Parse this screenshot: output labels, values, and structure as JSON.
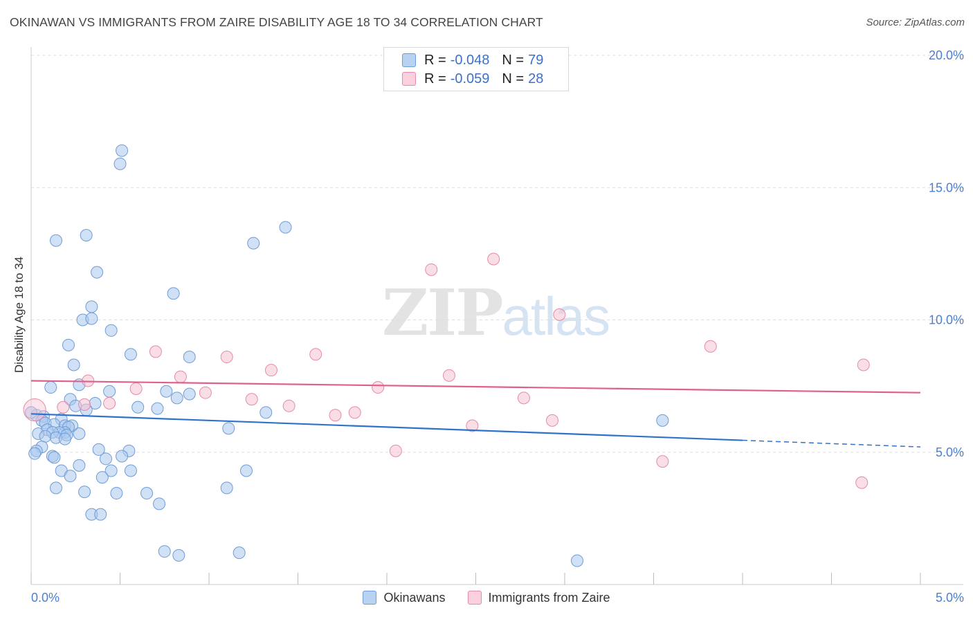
{
  "header": {
    "title": "OKINAWAN VS IMMIGRANTS FROM ZAIRE DISABILITY AGE 18 TO 34 CORRELATION CHART",
    "source": "Source: ZipAtlas.com"
  },
  "watermark": {
    "zip": "ZIP",
    "atlas": "atlas"
  },
  "legend_top": {
    "rows": [
      {
        "r_label": "R =",
        "r_value": "-0.048",
        "n_label": "N =",
        "n_value": "79"
      },
      {
        "r_label": "R =",
        "r_value": "-0.059",
        "n_label": "N =",
        "n_value": "28"
      }
    ]
  },
  "legend_bottom": {
    "items": [
      {
        "label": "Okinawans"
      },
      {
        "label": "Immigrants from Zaire"
      }
    ]
  },
  "colors": {
    "blue_fill": "#a9c8ef",
    "blue_stroke": "#6f9bd6",
    "blue_line": "#2f72cc",
    "pink_fill": "#f6c3d2",
    "pink_stroke": "#e58aa8",
    "pink_line": "#e0608c",
    "tick_label": "#4b7fcf",
    "grid": "#dddddd"
  },
  "chart_data": {
    "type": "scatter",
    "title": "OKINAWAN VS IMMIGRANTS FROM ZAIRE DISABILITY AGE 18 TO 34 CORRELATION CHART",
    "xlabel": "",
    "ylabel": "Disability Age 18 to 34",
    "xlim": [
      0,
      5.0
    ],
    "ylim": [
      0,
      20.0
    ],
    "x_tick_labels": [
      "0.0%",
      "5.0%"
    ],
    "y_ticks": [
      5,
      10,
      15,
      20
    ],
    "y_tick_labels": [
      "5.0%",
      "10.0%",
      "15.0%",
      "20.0%"
    ],
    "grid": true,
    "series": [
      {
        "name": "Okinawans",
        "R": -0.048,
        "N": 79,
        "trend": {
          "x0": 0.0,
          "y0": 6.45,
          "x1": 4.0,
          "y1": 5.45,
          "dash_to_x": 5.0,
          "dash_to_y": 5.2
        },
        "points": [
          [
            0.51,
            16.4
          ],
          [
            0.5,
            15.9
          ],
          [
            0.31,
            13.2
          ],
          [
            0.14,
            13.0
          ],
          [
            0.37,
            11.8
          ],
          [
            0.8,
            11.0
          ],
          [
            0.34,
            10.5
          ],
          [
            0.29,
            10.0
          ],
          [
            0.34,
            10.05
          ],
          [
            0.45,
            9.6
          ],
          [
            0.21,
            9.05
          ],
          [
            0.56,
            8.7
          ],
          [
            0.89,
            8.6
          ],
          [
            0.24,
            8.3
          ],
          [
            0.11,
            7.45
          ],
          [
            0.27,
            7.55
          ],
          [
            0.44,
            7.3
          ],
          [
            0.76,
            7.3
          ],
          [
            0.89,
            7.2
          ],
          [
            0.82,
            7.05
          ],
          [
            0.22,
            7.0
          ],
          [
            0.36,
            6.85
          ],
          [
            0.25,
            6.75
          ],
          [
            0.71,
            6.65
          ],
          [
            0.31,
            6.6
          ],
          [
            1.32,
            6.5
          ],
          [
            0.03,
            6.4
          ],
          [
            0.07,
            6.35
          ],
          [
            0.06,
            6.2
          ],
          [
            0.17,
            6.25
          ],
          [
            0.08,
            6.1
          ],
          [
            0.13,
            6.05
          ],
          [
            0.19,
            6.0
          ],
          [
            0.23,
            6.0
          ],
          [
            0.21,
            5.95
          ],
          [
            0.09,
            5.85
          ],
          [
            0.19,
            5.75
          ],
          [
            0.16,
            5.75
          ],
          [
            0.04,
            5.7
          ],
          [
            0.12,
            5.75
          ],
          [
            0.27,
            5.7
          ],
          [
            0.2,
            5.65
          ],
          [
            0.08,
            5.6
          ],
          [
            0.14,
            5.55
          ],
          [
            0.19,
            5.5
          ],
          [
            3.55,
            6.2
          ],
          [
            1.11,
            5.9
          ],
          [
            0.06,
            5.2
          ],
          [
            0.03,
            5.05
          ],
          [
            0.38,
            5.1
          ],
          [
            0.55,
            5.05
          ],
          [
            0.02,
            4.95
          ],
          [
            0.12,
            4.85
          ],
          [
            0.13,
            4.8
          ],
          [
            0.51,
            4.85
          ],
          [
            0.42,
            4.75
          ],
          [
            0.27,
            4.5
          ],
          [
            0.17,
            4.3
          ],
          [
            0.45,
            4.3
          ],
          [
            0.56,
            4.3
          ],
          [
            1.21,
            4.3
          ],
          [
            0.22,
            4.1
          ],
          [
            0.4,
            4.05
          ],
          [
            0.14,
            3.65
          ],
          [
            0.3,
            3.5
          ],
          [
            0.48,
            3.45
          ],
          [
            0.65,
            3.45
          ],
          [
            1.1,
            3.65
          ],
          [
            0.72,
            3.05
          ],
          [
            0.34,
            2.65
          ],
          [
            0.39,
            2.65
          ],
          [
            0.75,
            1.25
          ],
          [
            0.83,
            1.1
          ],
          [
            1.17,
            1.2
          ],
          [
            3.07,
            0.9
          ],
          [
            1.43,
            13.5
          ],
          [
            1.25,
            12.9
          ],
          [
            0.0,
            6.5
          ],
          [
            0.6,
            6.7
          ]
        ]
      },
      {
        "name": "Immigrants from Zaire",
        "R": -0.059,
        "N": 28,
        "trend": {
          "x0": 0.0,
          "y0": 7.7,
          "x1": 5.0,
          "y1": 7.25
        },
        "points": [
          [
            2.6,
            12.3
          ],
          [
            2.25,
            11.9
          ],
          [
            2.97,
            10.2
          ],
          [
            3.82,
            9.0
          ],
          [
            4.68,
            8.3
          ],
          [
            0.7,
            8.8
          ],
          [
            1.6,
            8.7
          ],
          [
            1.1,
            8.6
          ],
          [
            1.35,
            8.1
          ],
          [
            2.35,
            7.9
          ],
          [
            0.84,
            7.85
          ],
          [
            0.32,
            7.7
          ],
          [
            1.95,
            7.45
          ],
          [
            0.59,
            7.4
          ],
          [
            0.98,
            7.25
          ],
          [
            2.77,
            7.05
          ],
          [
            1.24,
            7.0
          ],
          [
            0.44,
            6.85
          ],
          [
            0.3,
            6.8
          ],
          [
            1.45,
            6.75
          ],
          [
            0.18,
            6.7
          ],
          [
            1.82,
            6.5
          ],
          [
            1.71,
            6.4
          ],
          [
            2.93,
            6.2
          ],
          [
            2.48,
            6.0
          ],
          [
            2.05,
            5.05
          ],
          [
            3.55,
            4.65
          ],
          [
            4.67,
            3.85
          ]
        ]
      }
    ]
  }
}
